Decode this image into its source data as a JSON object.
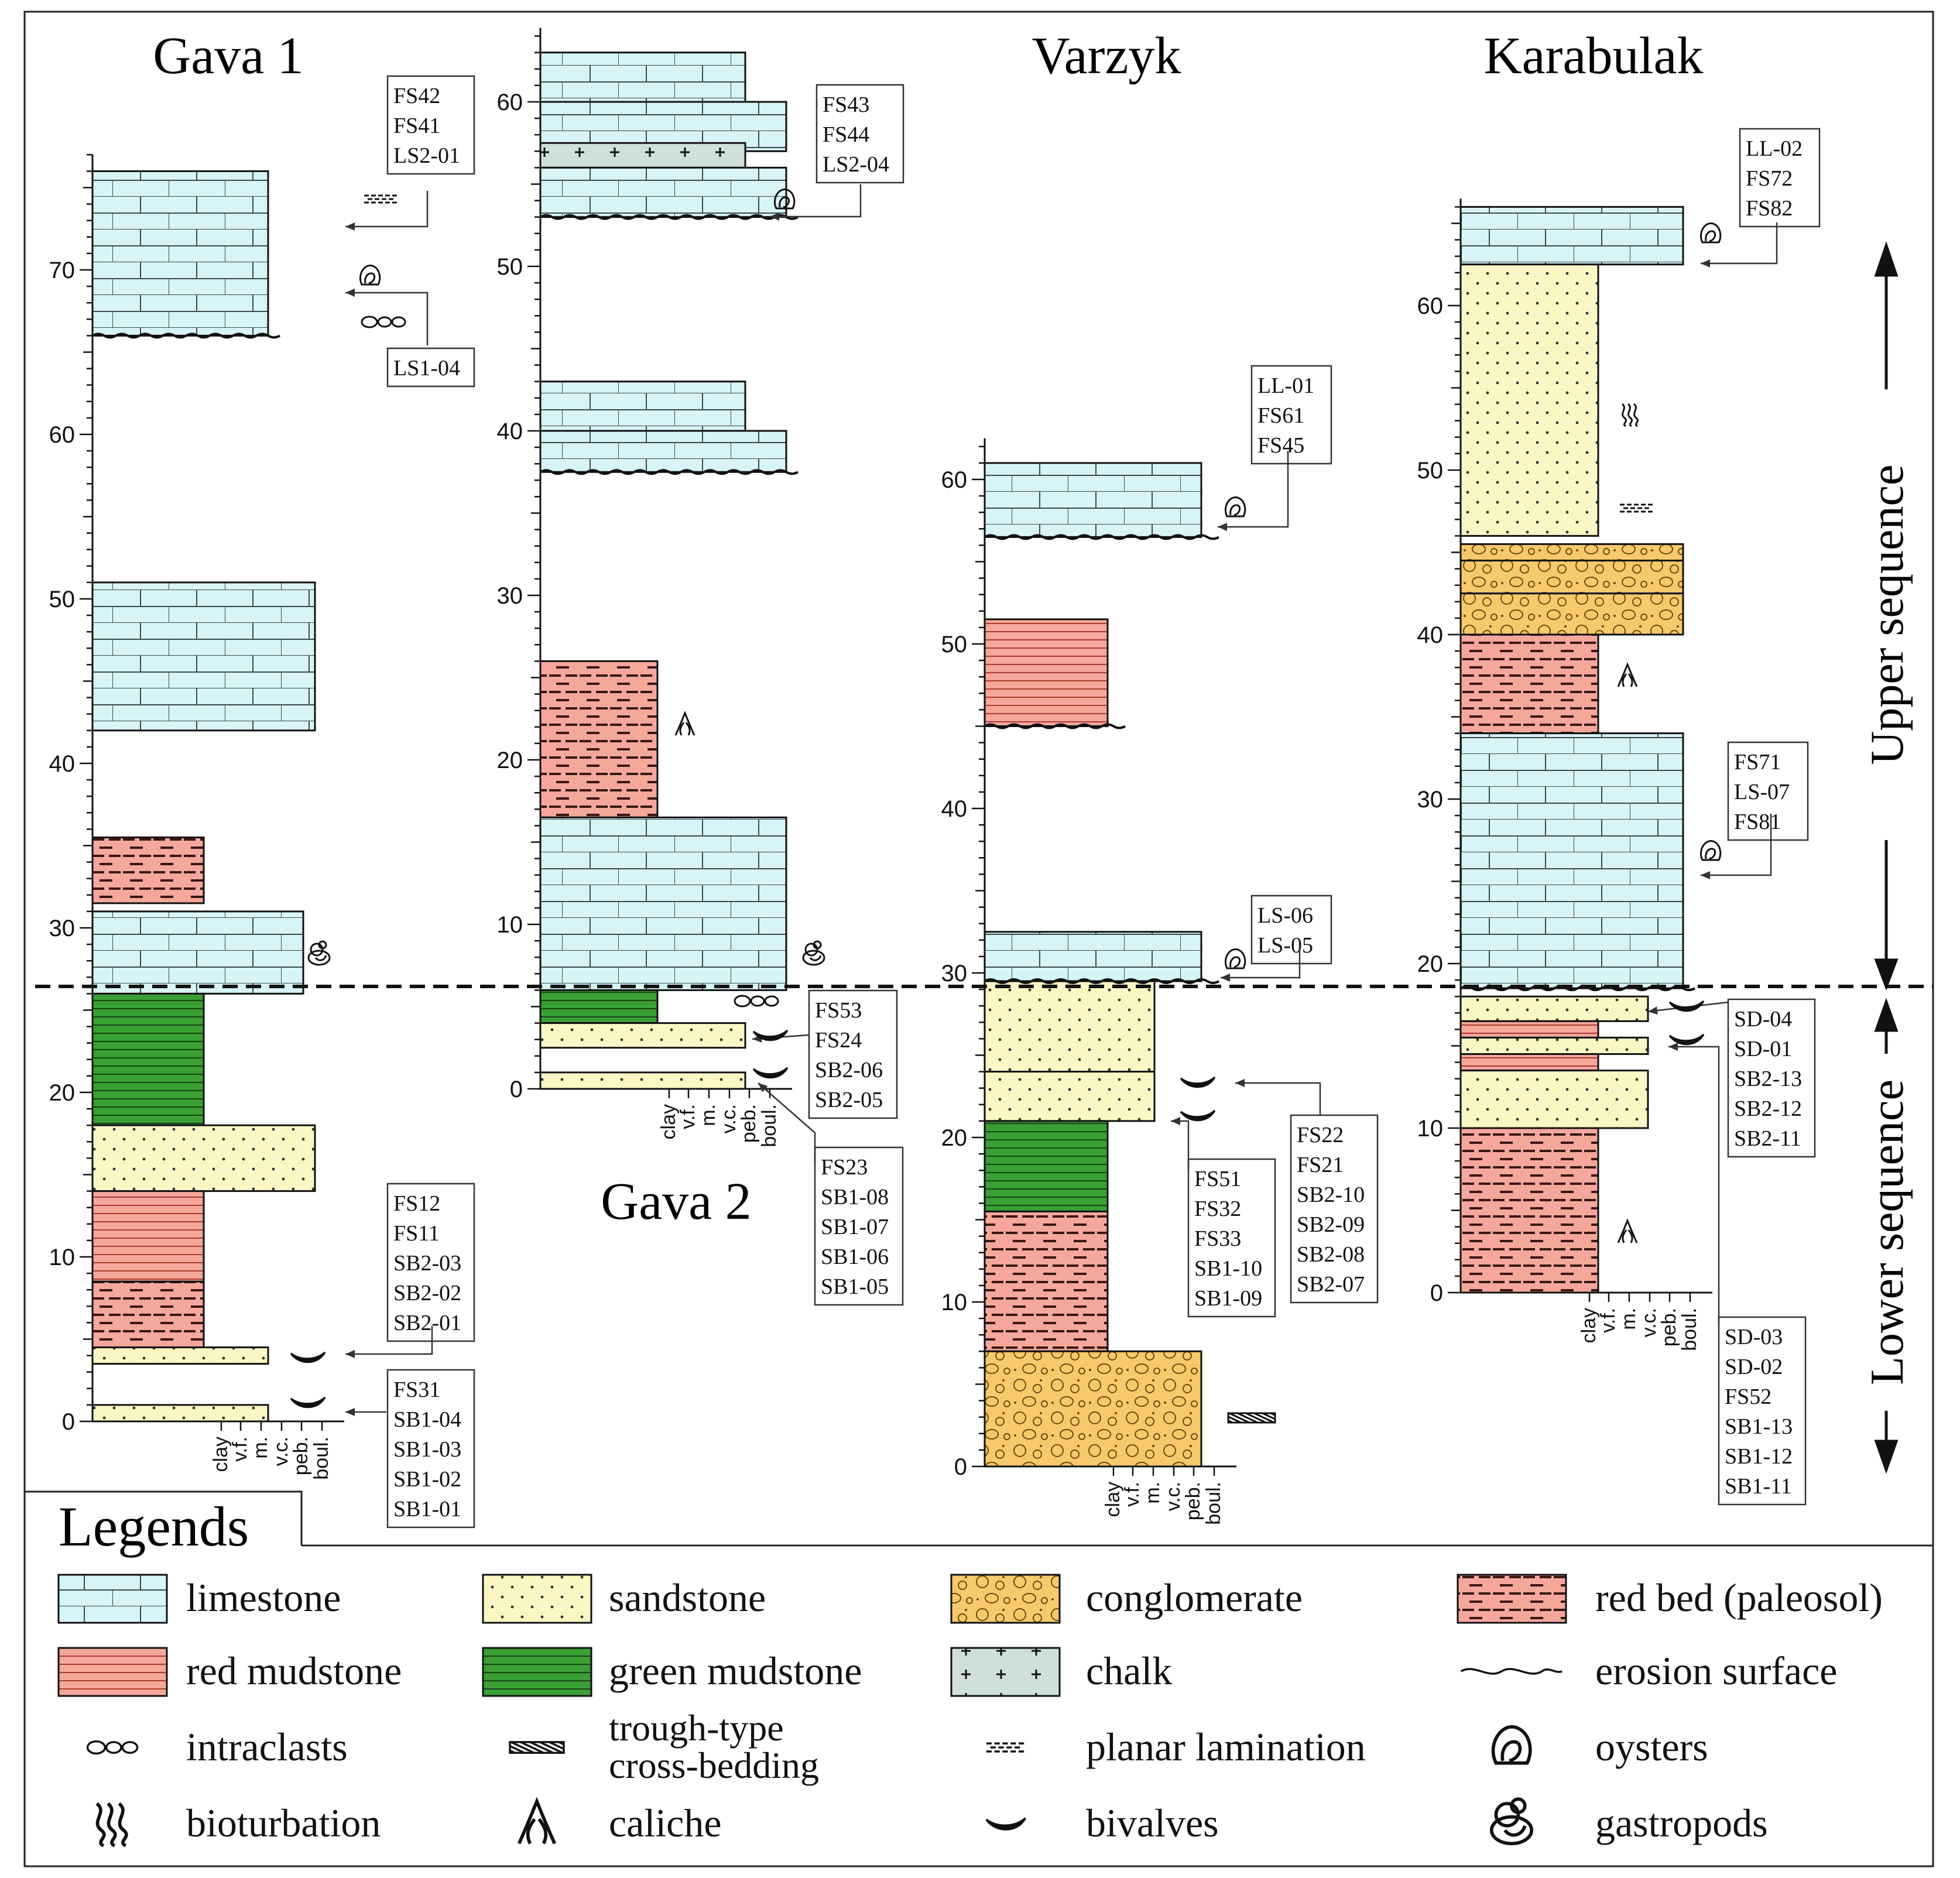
{
  "columns": [
    {
      "name": "Gava 1",
      "scale_ticks": [
        "0",
        "10",
        "20",
        "30",
        "40",
        "50",
        "60",
        "70"
      ],
      "units": [
        {
          "litho": "limestone",
          "from": 66,
          "to": 76,
          "width": "m"
        },
        {
          "litho": "limestone",
          "from": 42,
          "to": 51,
          "width": "f"
        },
        {
          "litho": "redbed",
          "from": 31.5,
          "to": 35.5,
          "width": "vf"
        },
        {
          "litho": "limestone",
          "from": 26,
          "to": 31,
          "width": "c"
        },
        {
          "litho": "green",
          "from": 18,
          "to": 26,
          "width": "vf"
        },
        {
          "litho": "sandstone",
          "from": 14,
          "to": 18,
          "width": "f"
        },
        {
          "litho": "redmud",
          "from": 8.5,
          "to": 14,
          "width": "vf"
        },
        {
          "litho": "redbed",
          "from": 4.5,
          "to": 8.5,
          "width": "vf"
        },
        {
          "litho": "sandstone",
          "from": 3.5,
          "to": 4.5,
          "width": "m"
        },
        {
          "litho": "sandstone",
          "from": 0,
          "to": 1,
          "width": "m"
        }
      ],
      "sample_groups": [
        [
          "FS42",
          "FS41",
          "LS2-01"
        ],
        [
          "LS1-04"
        ],
        [
          "FS12",
          "FS11",
          "SB2-03",
          "SB2-02",
          "SB2-01"
        ],
        [
          "FS31",
          "SB1-04",
          "SB1-03",
          "SB1-02",
          "SB1-01"
        ]
      ]
    },
    {
      "name": "Gava 2",
      "scale_ticks": [
        "0",
        "10",
        "20",
        "30",
        "40",
        "50",
        "60"
      ],
      "units": [
        {
          "litho": "limestone",
          "from": 60,
          "to": 63,
          "width": "f"
        },
        {
          "litho": "limestone",
          "from": 57,
          "to": 60,
          "width": "m"
        },
        {
          "litho": "chalk",
          "from": 56,
          "to": 57.5,
          "width": "f"
        },
        {
          "litho": "limestone",
          "from": 53,
          "to": 56,
          "width": "m"
        },
        {
          "litho": "limestone",
          "from": 40,
          "to": 43,
          "width": "f"
        },
        {
          "litho": "limestone",
          "from": 37.5,
          "to": 40,
          "width": "m"
        },
        {
          "litho": "redbed",
          "from": 16.5,
          "to": 26,
          "width": "vf"
        },
        {
          "litho": "limestone",
          "from": 6,
          "to": 16.5,
          "width": "m"
        },
        {
          "litho": "green",
          "from": 4,
          "to": 6,
          "width": "vf"
        },
        {
          "litho": "sandstone",
          "from": 2.5,
          "to": 4,
          "width": "f"
        },
        {
          "litho": "sandstone",
          "from": 0,
          "to": 1,
          "width": "f"
        }
      ],
      "sample_groups": [
        [
          "FS43",
          "FS44",
          "LS2-04"
        ],
        [
          "FS53",
          "FS24",
          "SB2-06",
          "SB2-05"
        ],
        [
          "FS23",
          "SB1-08",
          "SB1-07",
          "SB1-06",
          "SB1-05"
        ]
      ]
    },
    {
      "name": "Varzyk",
      "scale_ticks": [
        "0",
        "10",
        "20",
        "30",
        "40",
        "50",
        "60"
      ],
      "units": [
        {
          "litho": "limestone",
          "from": 56.5,
          "to": 61,
          "width": "c"
        },
        {
          "litho": "redmud",
          "from": 45,
          "to": 51.5,
          "width": "vf"
        },
        {
          "litho": "limestone",
          "from": 29.5,
          "to": 32.5,
          "width": "c"
        },
        {
          "litho": "sandstone",
          "from": 24,
          "to": 29.5,
          "width": "f"
        },
        {
          "litho": "sandstone",
          "from": 21,
          "to": 24,
          "width": "f"
        },
        {
          "litho": "green",
          "from": 15.5,
          "to": 21,
          "width": "vf"
        },
        {
          "litho": "redbed",
          "from": 7,
          "to": 15.5,
          "width": "vf"
        },
        {
          "litho": "conglomerate",
          "from": 0,
          "to": 7,
          "width": "c"
        }
      ],
      "sample_groups": [
        [
          "LL-01",
          "FS61",
          "FS45"
        ],
        [
          "LS-06",
          "LS-05"
        ],
        [
          "FS22",
          "FS21",
          "SB2-10",
          "SB2-09",
          "SB2-08",
          "SB2-07"
        ],
        [
          "FS51",
          "FS32",
          "FS33",
          "SB1-10",
          "SB1-09"
        ]
      ]
    },
    {
      "name": "Karabulak",
      "scale_ticks": [
        "0",
        "10",
        "20",
        "30",
        "40",
        "50",
        "60"
      ],
      "units": [
        {
          "litho": "limestone",
          "from": 62.5,
          "to": 66,
          "width": "c"
        },
        {
          "litho": "sandstone",
          "from": 46,
          "to": 62.5,
          "width": "vf"
        },
        {
          "litho": "conglomerate",
          "from": 44.5,
          "to": 45.5,
          "width": "c"
        },
        {
          "litho": "conglomerate",
          "from": 42.5,
          "to": 44.5,
          "width": "c"
        },
        {
          "litho": "conglomerate",
          "from": 40,
          "to": 42.5,
          "width": "c"
        },
        {
          "litho": "redbed",
          "from": 34,
          "to": 40,
          "width": "vf"
        },
        {
          "litho": "limestone",
          "from": 18.5,
          "to": 34,
          "width": "c"
        },
        {
          "litho": "sandstone",
          "from": 16.5,
          "to": 18,
          "width": "f"
        },
        {
          "litho": "redmud",
          "from": 15.5,
          "to": 16.5,
          "width": "vf"
        },
        {
          "litho": "sandstone",
          "from": 14.5,
          "to": 15.5,
          "width": "f"
        },
        {
          "litho": "redmud",
          "from": 13.5,
          "to": 14.5,
          "width": "vf"
        },
        {
          "litho": "sandstone",
          "from": 10,
          "to": 13.5,
          "width": "f"
        },
        {
          "litho": "redbed",
          "from": 0,
          "to": 10,
          "width": "vf"
        }
      ],
      "sample_groups": [
        [
          "LL-02",
          "FS72",
          "FS82"
        ],
        [
          "FS71",
          "LS-07",
          "FS81"
        ],
        [
          "SD-04",
          "SD-01",
          "SB2-13",
          "SB2-12",
          "SB2-11"
        ],
        [
          "SD-03",
          "SD-02",
          "FS52",
          "SB1-13",
          "SB1-12",
          "SB1-11"
        ]
      ]
    }
  ],
  "grain_size_labels": [
    "clay",
    "v.f.",
    "m.",
    "v.c.",
    "peb.",
    "boul."
  ],
  "sequences": {
    "upper": "Upper sequence",
    "lower": "Lower sequence"
  },
  "legend": {
    "title": "Legends",
    "items": [
      {
        "key": "limestone",
        "label": "limestone"
      },
      {
        "key": "sandstone",
        "label": "sandstone"
      },
      {
        "key": "conglomerate",
        "label": "conglomerate"
      },
      {
        "key": "redbed",
        "label": "red bed (paleosol)"
      },
      {
        "key": "redmud",
        "label": "red mudstone"
      },
      {
        "key": "green",
        "label": "green mudstone"
      },
      {
        "key": "chalk",
        "label": "chalk"
      },
      {
        "key": "erosion",
        "label": "erosion surface"
      },
      {
        "key": "intraclasts",
        "label": "intraclasts"
      },
      {
        "key": "trough",
        "label": "trough-type cross-bedding"
      },
      {
        "key": "planar",
        "label": "planar lamination"
      },
      {
        "key": "oysters",
        "label": "oysters"
      },
      {
        "key": "bioturbation",
        "label": "bioturbation"
      },
      {
        "key": "caliche",
        "label": "caliche"
      },
      {
        "key": "bivalves",
        "label": "bivalves"
      },
      {
        "key": "gastropods",
        "label": "gastropods"
      }
    ]
  },
  "colors": {
    "limestone": "#d7f4f7",
    "sandstone": "#fbf7c4",
    "conglomerate": "#f7c96a",
    "redbed": "#f5a79c",
    "redmud": "#f5a79c",
    "green": "#3a9f35",
    "chalk": "#cfe0dc"
  }
}
